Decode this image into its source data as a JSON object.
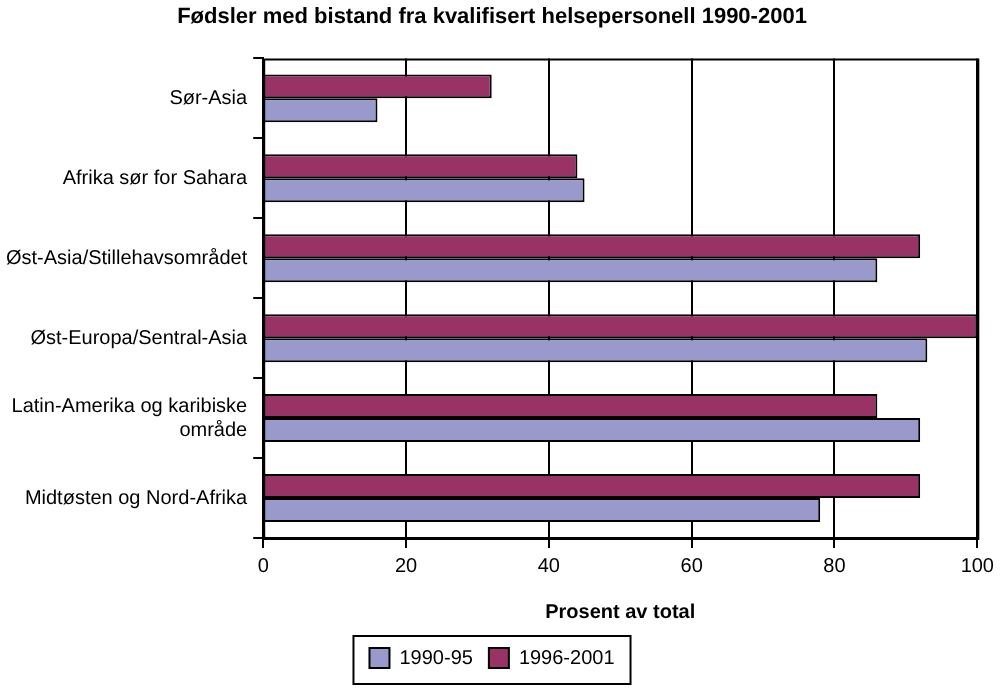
{
  "chart_data": {
    "type": "bar",
    "orientation": "horizontal",
    "title": "Fødsler med bistand fra kvalifisert helsepersonell 1990-2001",
    "xlabel": "Prosent av total",
    "categories": [
      "Sør-Asia",
      "Afrika sør for Sahara",
      "Øst-Asia/Stillehavsområdet",
      "Øst-Europa/Sentral-Asia",
      "Latin-Amerika og karibiske område",
      "Midtøsten og Nord-Afrika"
    ],
    "series": [
      {
        "name": "1990-95",
        "color": "#9999cc",
        "values": [
          16,
          45,
          86,
          93,
          92,
          78
        ]
      },
      {
        "name": "1996-2001",
        "color": "#993366",
        "values": [
          32,
          44,
          92,
          100,
          86,
          92
        ]
      }
    ],
    "xlim": [
      0,
      100
    ],
    "xticks": [
      0,
      20,
      40,
      60,
      80,
      100
    ],
    "grid": "x",
    "legend": "bottom"
  }
}
